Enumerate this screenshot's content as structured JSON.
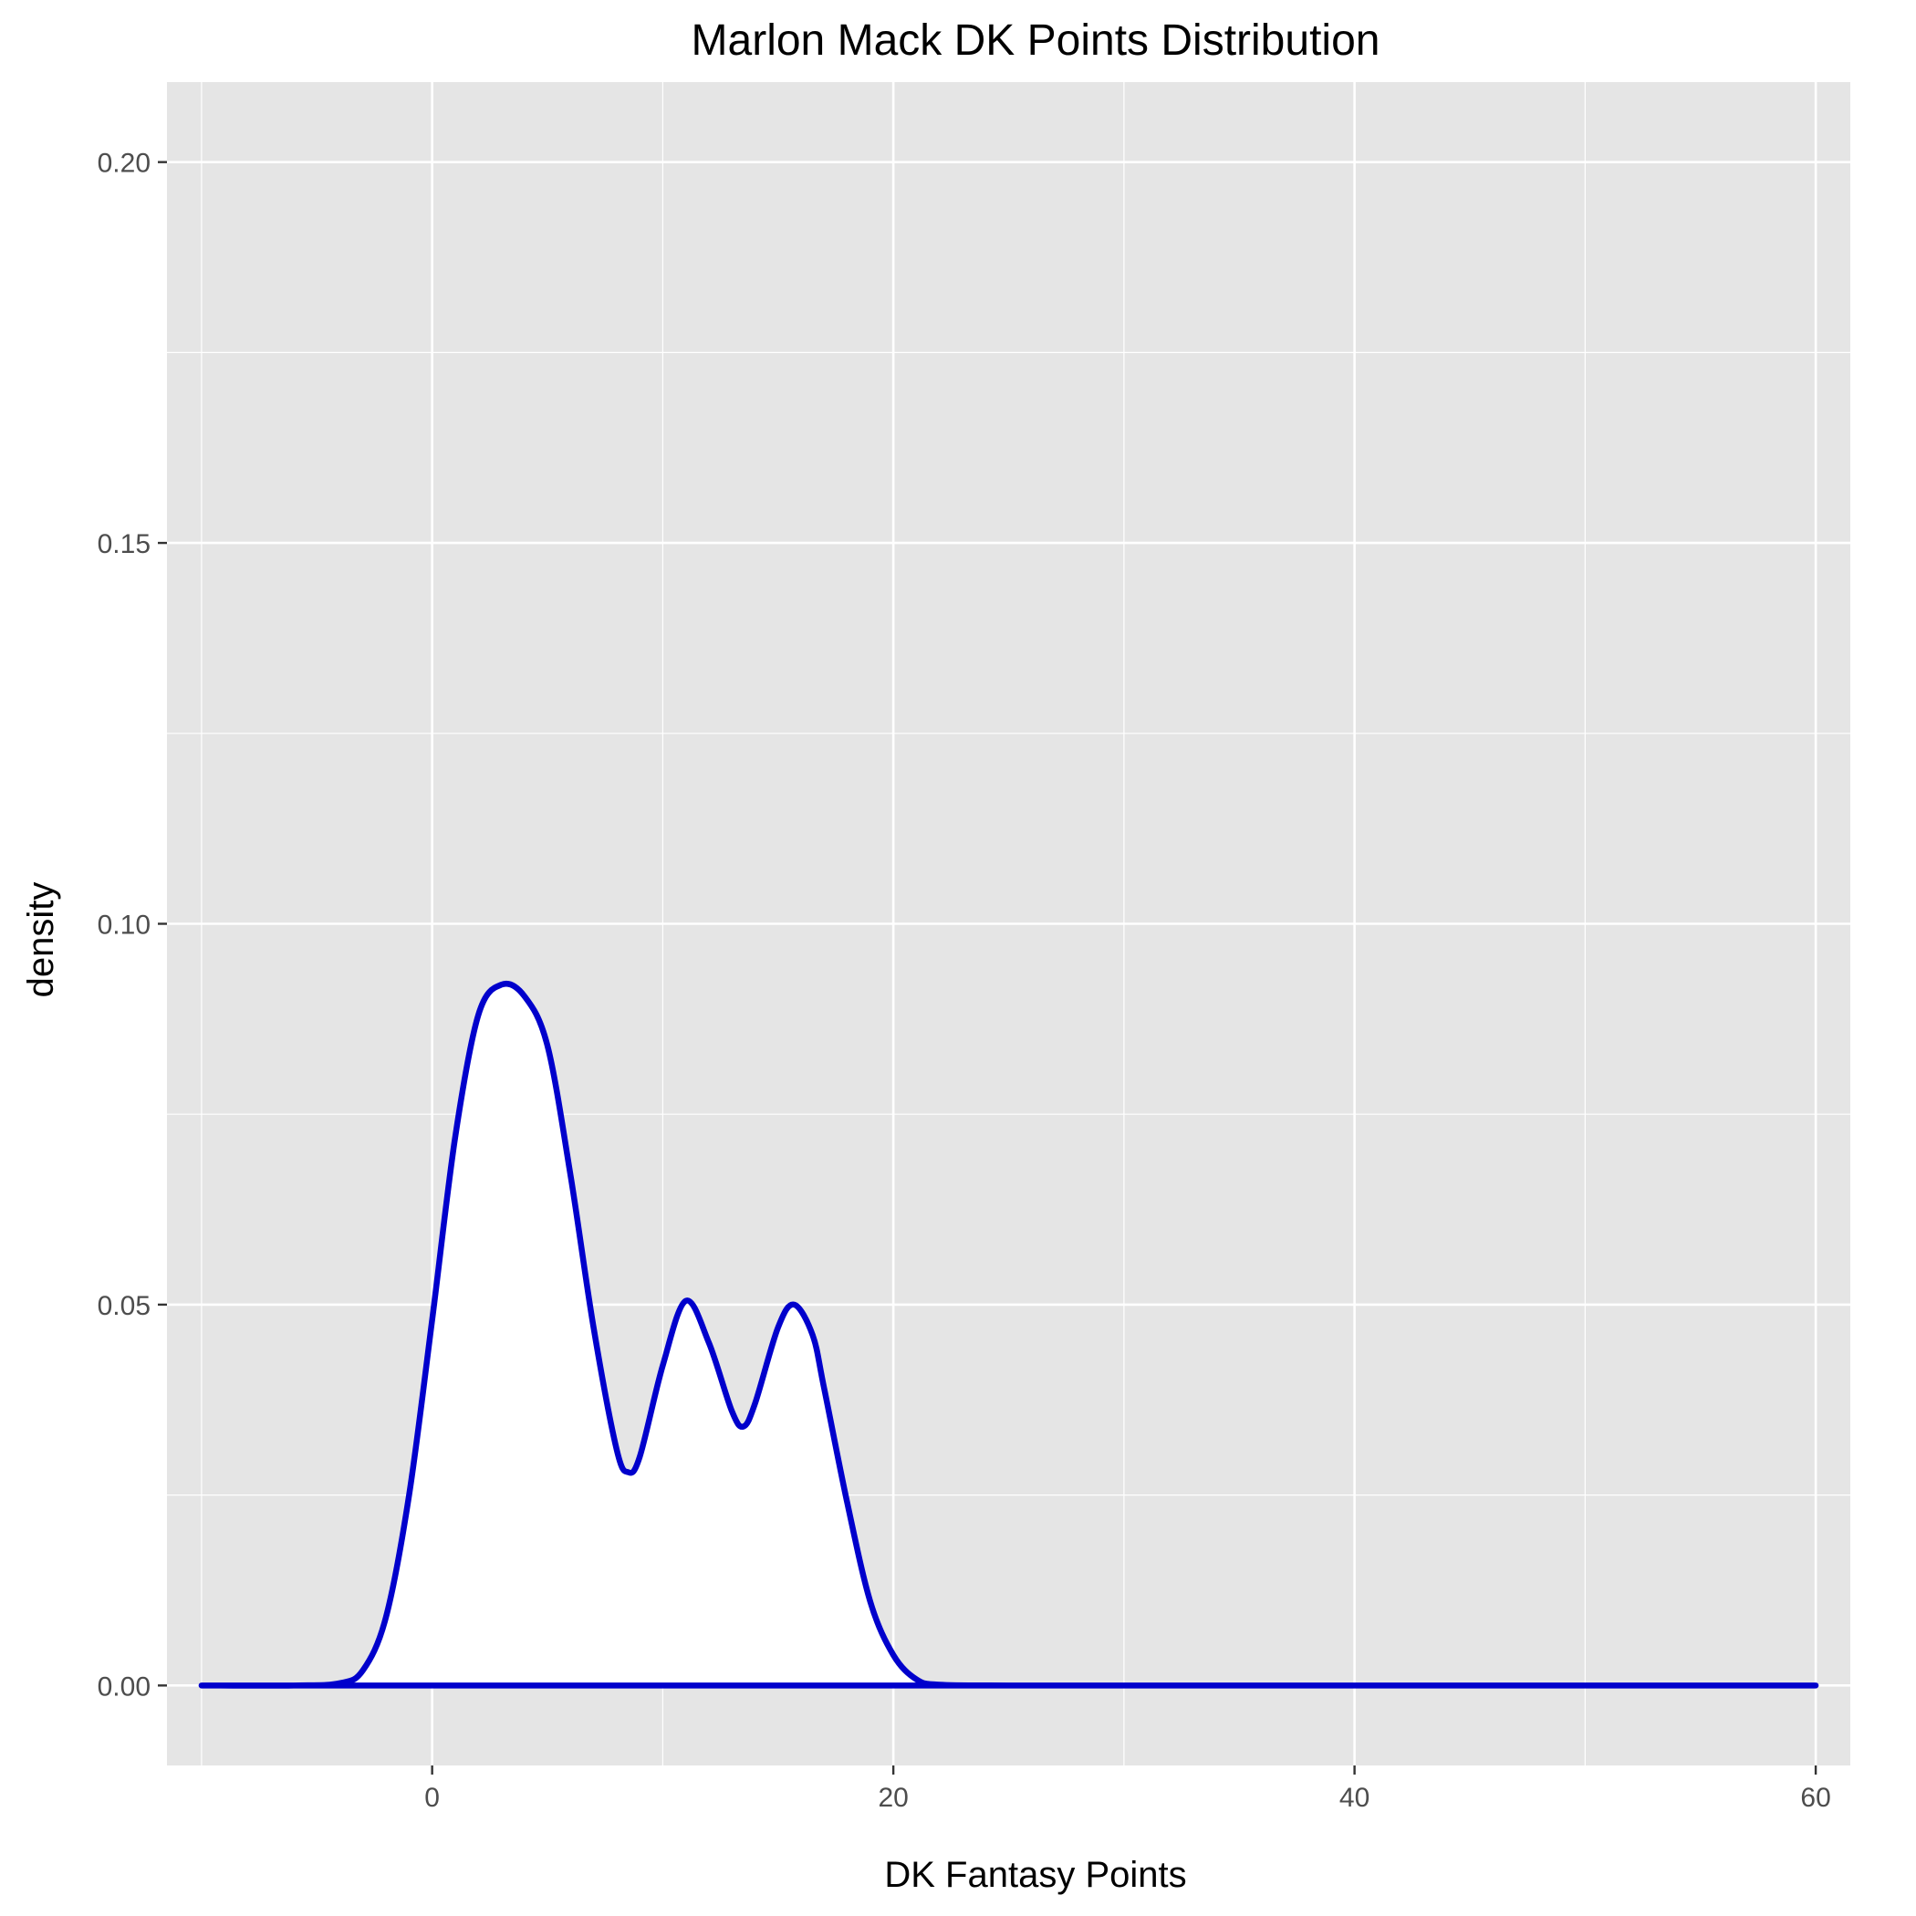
{
  "chart_data": {
    "type": "area",
    "title": "Marlon Mack DK Points Distribution",
    "xlabel": "DK Fantasy Points",
    "ylabel": "density",
    "xlim": [
      -11.5,
      61.5
    ],
    "ylim": [
      -0.0105,
      0.2105
    ],
    "x_ticks": [
      0,
      20,
      40,
      60
    ],
    "x_tick_labels": [
      "0",
      "20",
      "40",
      "60"
    ],
    "y_ticks": [
      0,
      0.05,
      0.1,
      0.15,
      0.2
    ],
    "y_tick_labels": [
      "0.00",
      "0.05",
      "0.10",
      "0.15",
      "0.20"
    ],
    "grid": true,
    "legend": "none",
    "colors": {
      "panel": "#e5e5e5",
      "grid": "#ffffff",
      "line": "#0000cc",
      "fill": "#ffffff"
    },
    "series": [
      {
        "x": [
          -10,
          -6,
          -4,
          -3,
          -2,
          -1,
          0,
          1,
          2,
          3,
          4,
          5,
          6,
          7,
          8,
          8.5,
          9,
          10,
          11,
          12,
          13,
          13.5,
          14,
          15,
          15.7,
          16.5,
          17,
          18,
          19,
          20,
          21,
          22,
          25,
          30,
          40,
          50,
          60
        ],
        "y": [
          0,
          0,
          0.0003,
          0.002,
          0.009,
          0.025,
          0.048,
          0.072,
          0.088,
          0.092,
          0.0905,
          0.084,
          0.067,
          0.047,
          0.031,
          0.028,
          0.03,
          0.042,
          0.0505,
          0.045,
          0.036,
          0.034,
          0.037,
          0.047,
          0.05,
          0.046,
          0.039,
          0.024,
          0.011,
          0.004,
          0.0008,
          0.0001,
          0,
          0,
          0,
          0,
          0
        ]
      }
    ]
  }
}
